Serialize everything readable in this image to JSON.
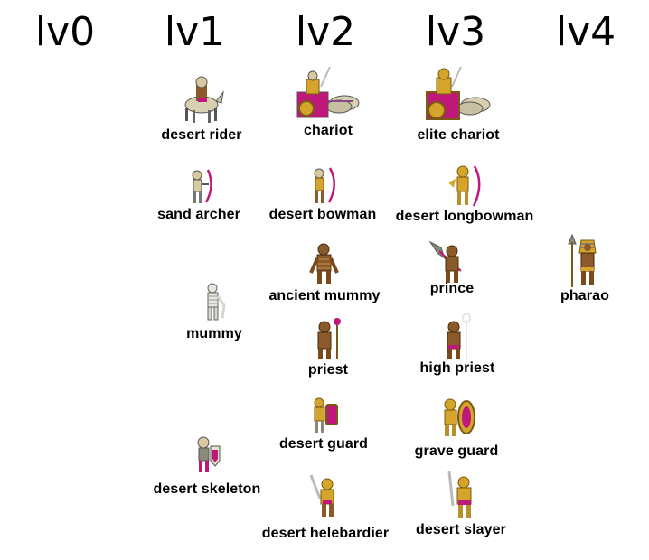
{
  "levels": [
    "lv0",
    "lv1",
    "lv2",
    "lv3",
    "lv4"
  ],
  "units": {
    "desert_rider": "desert rider",
    "chariot": "chariot",
    "elite_chariot": "elite chariot",
    "sand_archer": "sand archer",
    "desert_bowman": "desert bowman",
    "desert_longbowman": "desert longbowman",
    "ancient_mummy": "ancient mummy",
    "prince": "prince",
    "pharao": "pharao",
    "mummy": "mummy",
    "priest": "priest",
    "high_priest": "high priest",
    "desert_guard": "desert guard",
    "grave_guard": "grave guard",
    "desert_skeleton": "desert skeleton",
    "desert_helebardier": "desert helebardier",
    "desert_slayer": "desert slayer"
  },
  "colors": {
    "bone": "#d8c9a0",
    "gold": "#d4a52a",
    "gold_dark": "#7a5a12",
    "magenta": "#c0187a",
    "bandage": "#8a5a2a",
    "grey": "#9a9a90"
  }
}
